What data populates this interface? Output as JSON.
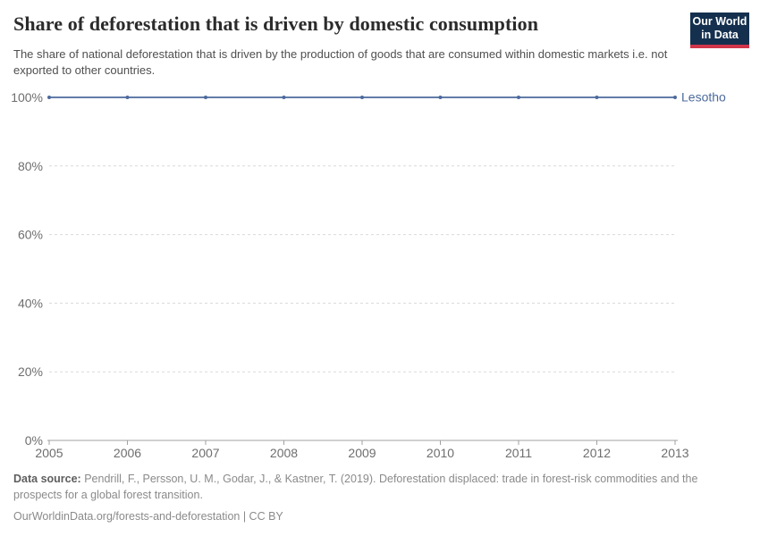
{
  "header": {
    "title": "Share of deforestation that is driven by domestic consumption",
    "subtitle": "The share of national deforestation that is driven by the production of goods that are consumed within domestic markets i.e. not exported to other countries."
  },
  "logo": {
    "line1": "Our World",
    "line2": "in Data",
    "bg_color": "#14304e",
    "accent_color": "#d13549"
  },
  "chart_data": {
    "type": "line",
    "x": [
      2005,
      2006,
      2007,
      2008,
      2009,
      2010,
      2011,
      2012,
      2013
    ],
    "series": [
      {
        "name": "Lesotho",
        "color": "#4C6A9C",
        "values": [
          100,
          100,
          100,
          100,
          100,
          100,
          100,
          100,
          100
        ]
      }
    ],
    "ylim": [
      0,
      100
    ],
    "yticks": [
      0,
      20,
      40,
      60,
      80,
      100
    ],
    "ytick_suffix": "%",
    "xticks": [
      2005,
      2006,
      2007,
      2008,
      2009,
      2010,
      2011,
      2012,
      2013
    ],
    "grid": "horizontal-dashed",
    "legend_position": "line-end-right",
    "colors": {
      "line": "#4C6A9C",
      "series_label": "#4C6A9C",
      "gridline": "#d9d9d9",
      "axis": "#a1a1a1",
      "tick_text": "#6e6e6e"
    }
  },
  "footer": {
    "source_label": "Data source:",
    "source_text": " Pendrill, F., Persson, U. M., Godar, J., & Kastner, T. (2019). Deforestation displaced: trade in forest-risk commodities and the prospects for a global forest transition.",
    "link_text": "OurWorldinData.org/forests-and-deforestation | CC BY"
  }
}
